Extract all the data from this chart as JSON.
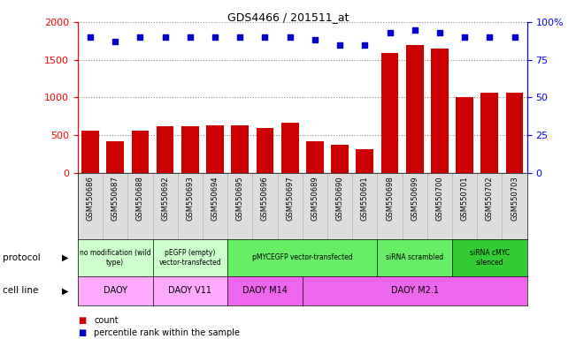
{
  "title": "GDS4466 / 201511_at",
  "samples": [
    "GSM550686",
    "GSM550687",
    "GSM550688",
    "GSM550692",
    "GSM550693",
    "GSM550694",
    "GSM550695",
    "GSM550696",
    "GSM550697",
    "GSM550689",
    "GSM550690",
    "GSM550691",
    "GSM550698",
    "GSM550699",
    "GSM550700",
    "GSM550701",
    "GSM550702",
    "GSM550703"
  ],
  "counts": [
    560,
    420,
    565,
    620,
    615,
    625,
    625,
    600,
    660,
    415,
    375,
    310,
    1590,
    1690,
    1650,
    1010,
    1060,
    1060
  ],
  "percentile_ranks": [
    90,
    87,
    90,
    90,
    90,
    90,
    90,
    90,
    90,
    88,
    85,
    85,
    93,
    95,
    93,
    90,
    90,
    90
  ],
  "ylim_left": [
    0,
    2000
  ],
  "ylim_right": [
    0,
    100
  ],
  "yticks_left": [
    0,
    500,
    1000,
    1500,
    2000
  ],
  "yticks_right": [
    0,
    25,
    50,
    75,
    100
  ],
  "bar_color": "#cc0000",
  "dot_color": "#0000cc",
  "protocols": [
    {
      "label": "no modification (wild\ntype)",
      "start": 0,
      "end": 3,
      "color": "#ccffcc"
    },
    {
      "label": "pEGFP (empty)\nvector-transfected",
      "start": 3,
      "end": 6,
      "color": "#ccffcc"
    },
    {
      "label": "pMYCEGFP vector-transfected",
      "start": 6,
      "end": 12,
      "color": "#66ee66"
    },
    {
      "label": "siRNA scrambled",
      "start": 12,
      "end": 15,
      "color": "#66ee66"
    },
    {
      "label": "siRNA cMYC\nsilenced",
      "start": 15,
      "end": 18,
      "color": "#33cc33"
    }
  ],
  "cell_lines": [
    {
      "label": "DAOY",
      "start": 0,
      "end": 3,
      "color": "#ffaaff"
    },
    {
      "label": "DAOY V11",
      "start": 3,
      "end": 6,
      "color": "#ffaaff"
    },
    {
      "label": "DAOY M14",
      "start": 6,
      "end": 9,
      "color": "#ee66ee"
    },
    {
      "label": "DAOY M2.1",
      "start": 9,
      "end": 18,
      "color": "#ee66ee"
    }
  ],
  "xtick_bg_color": "#dddddd",
  "legend_count_color": "#cc0000",
  "legend_rank_color": "#0000cc"
}
